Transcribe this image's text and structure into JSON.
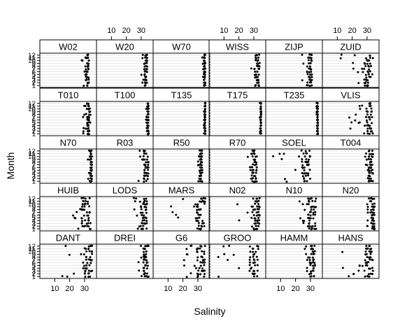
{
  "chart_data": {
    "type": "scatter",
    "title": "",
    "xlabel": "Salinity",
    "ylabel": "Month",
    "xlim": [
      0,
      38
    ],
    "ylim": [
      0.3,
      12.7
    ],
    "x_ticks": [
      10,
      20,
      30
    ],
    "y_ticks": [
      1,
      2,
      3,
      4,
      5,
      6,
      7,
      8,
      9,
      10,
      11,
      12
    ],
    "y_tick_labels_shown": [
      "1",
      "3",
      "5",
      "7",
      "9",
      "11"
    ],
    "y_tick_labels_partial": [
      "2",
      "4",
      "6",
      "8",
      "10",
      "12"
    ],
    "grid": "horizontal lines at each month",
    "marker": "filled circle",
    "colors": {
      "points": "#000000",
      "strip": "#ffffff",
      "grid": "#e6e6e6",
      "frame": "#000000"
    },
    "panels": [
      {
        "name": "DANT",
        "range": [
          15,
          35
        ]
      },
      {
        "name": "DREI",
        "range": [
          28,
          35
        ]
      },
      {
        "name": "G6",
        "range": [
          20,
          35
        ]
      },
      {
        "name": "GROO",
        "range": [
          1,
          33
        ]
      },
      {
        "name": "HAMM",
        "range": [
          26,
          33
        ]
      },
      {
        "name": "HANS",
        "range": [
          12,
          34
        ]
      },
      {
        "name": "HUIB",
        "range": [
          20,
          34
        ]
      },
      {
        "name": "LODS",
        "range": [
          25,
          34
        ]
      },
      {
        "name": "MARS",
        "range": [
          12,
          35
        ]
      },
      {
        "name": "N02",
        "range": [
          10,
          34
        ]
      },
      {
        "name": "N10",
        "range": [
          22,
          34
        ]
      },
      {
        "name": "N20",
        "range": [
          30,
          35
        ]
      },
      {
        "name": "N70",
        "range": [
          32,
          35
        ]
      },
      {
        "name": "R03",
        "range": [
          28,
          35
        ]
      },
      {
        "name": "R50",
        "range": [
          29,
          33
        ]
      },
      {
        "name": "R70",
        "range": [
          25,
          32
        ]
      },
      {
        "name": "SOEL",
        "range": [
          5,
          30
        ]
      },
      {
        "name": "T004",
        "range": [
          28,
          34
        ]
      },
      {
        "name": "T010",
        "range": [
          29,
          34
        ]
      },
      {
        "name": "T100",
        "range": [
          33,
          35
        ]
      },
      {
        "name": "T135",
        "range": [
          34,
          35
        ]
      },
      {
        "name": "T175",
        "range": [
          34,
          35
        ]
      },
      {
        "name": "T235",
        "range": [
          34,
          35
        ]
      },
      {
        "name": "VLIS",
        "range": [
          18,
          34
        ]
      },
      {
        "name": "W02",
        "range": [
          28,
          33
        ]
      },
      {
        "name": "W20",
        "range": [
          30,
          34
        ]
      },
      {
        "name": "W70",
        "range": [
          33,
          35
        ]
      },
      {
        "name": "WISS",
        "range": [
          26,
          34
        ]
      },
      {
        "name": "ZIJP",
        "range": [
          24,
          31
        ]
      },
      {
        "name": "ZUID",
        "range": [
          12,
          34
        ]
      }
    ],
    "layout_rows_top_to_bottom": [
      [
        "W02",
        "W20",
        "W70",
        "WISS",
        "ZIJP",
        "ZUID"
      ],
      [
        "T010",
        "T100",
        "T135",
        "T175",
        "T235",
        "VLIS"
      ],
      [
        "N70",
        "R03",
        "R50",
        "R70",
        "SOEL",
        "T004"
      ],
      [
        "HUIB",
        "LODS",
        "MARS",
        "N02",
        "N10",
        "N20"
      ],
      [
        "DANT",
        "DREI",
        "G6",
        "GROO",
        "HAMM",
        "HANS"
      ]
    ]
  }
}
